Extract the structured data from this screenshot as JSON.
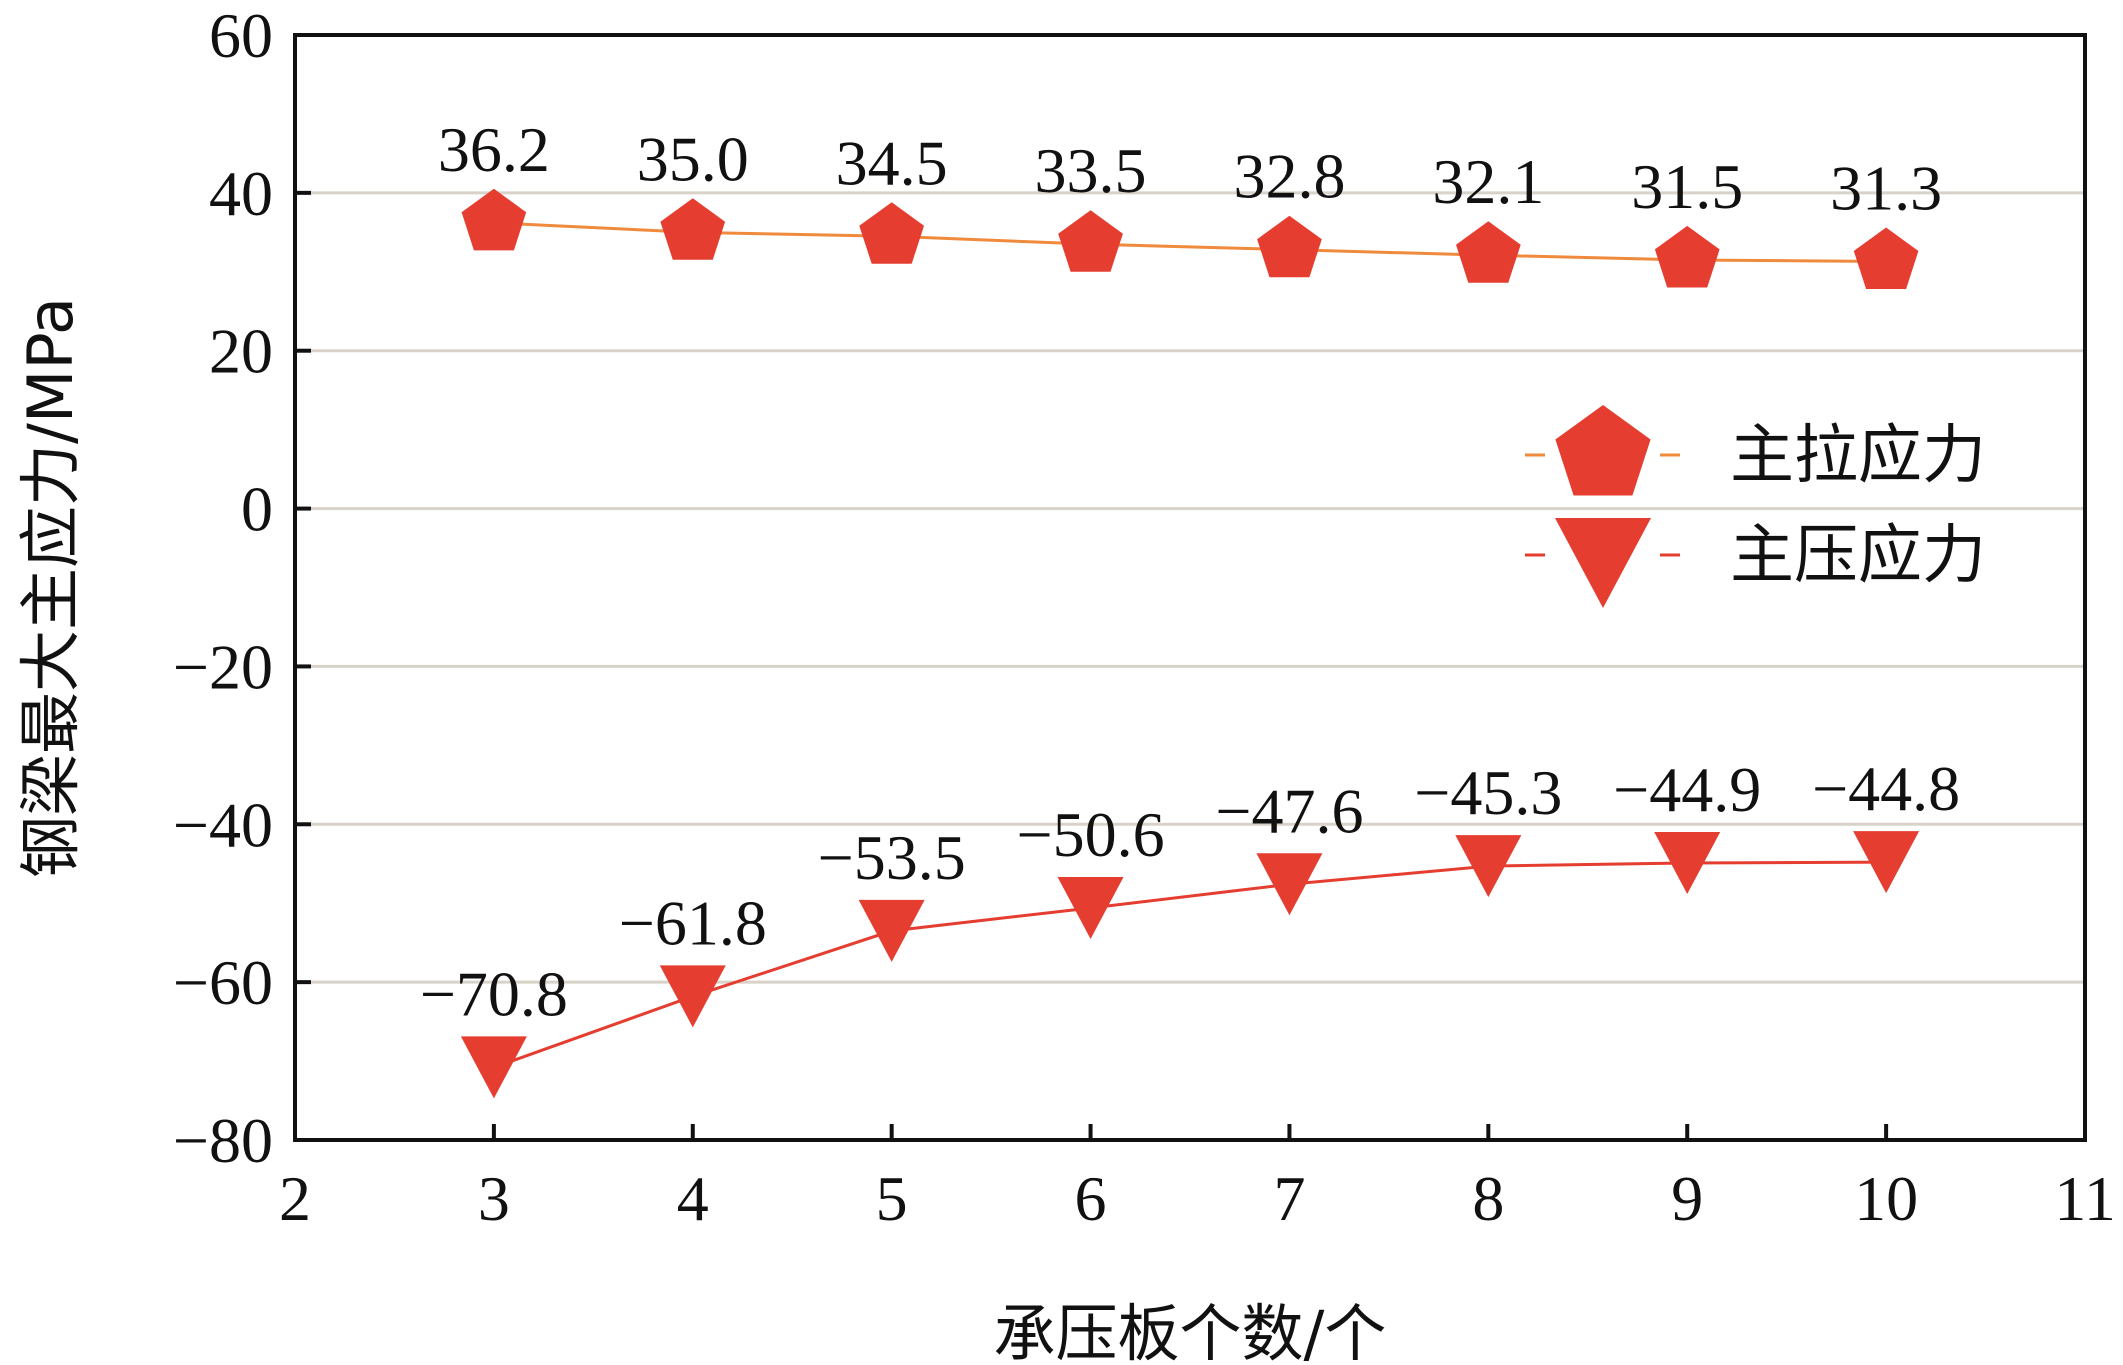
{
  "chart_data": {
    "type": "line",
    "xlabel": "承压板个数/个",
    "ylabel": "钢梁最大主应力/MPa",
    "xlim": [
      2,
      11
    ],
    "ylim": [
      -80,
      60
    ],
    "x_ticks": [
      "2",
      "3",
      "4",
      "5",
      "6",
      "7",
      "8",
      "9",
      "10",
      "11"
    ],
    "y_ticks": [
      "60",
      "40",
      "20",
      "0",
      "−20",
      "−40",
      "−60",
      "−80"
    ],
    "x": [
      3,
      4,
      5,
      6,
      7,
      8,
      9,
      10
    ],
    "grid": true,
    "legend_position": "right",
    "series": [
      {
        "name": "主拉应力",
        "marker": "pentagon",
        "color": "#e53d30",
        "line_color": "#f08a3c",
        "values": [
          36.2,
          35.0,
          34.5,
          33.5,
          32.8,
          32.1,
          31.5,
          31.3
        ],
        "labels": [
          "36.2",
          "35.0",
          "34.5",
          "33.5",
          "32.8",
          "32.1",
          "31.5",
          "31.3"
        ]
      },
      {
        "name": "主压应力",
        "marker": "triangle-down",
        "color": "#e53d30",
        "line_color": "#e53d30",
        "values": [
          -70.8,
          -61.8,
          -53.5,
          -50.6,
          -47.6,
          -45.3,
          -44.9,
          -44.8
        ],
        "labels": [
          "−70.8",
          "−61.8",
          "−53.5",
          "−50.6",
          "−47.6",
          "−45.3",
          "−44.9",
          "−44.8"
        ]
      }
    ]
  }
}
